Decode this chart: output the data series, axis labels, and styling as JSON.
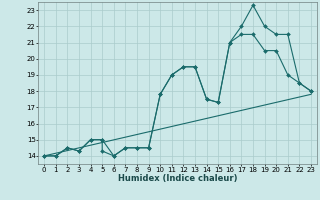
{
  "xlabel": "Humidex (Indice chaleur)",
  "bg_color": "#cce8e8",
  "grid_color": "#aacccc",
  "line_color": "#1a6b6b",
  "xlim": [
    -0.5,
    23.5
  ],
  "ylim": [
    13.5,
    23.5
  ],
  "yticks": [
    14,
    15,
    16,
    17,
    18,
    19,
    20,
    21,
    22,
    23
  ],
  "xticks": [
    0,
    1,
    2,
    3,
    4,
    5,
    6,
    7,
    8,
    9,
    10,
    11,
    12,
    13,
    14,
    15,
    16,
    17,
    18,
    19,
    20,
    21,
    22,
    23
  ],
  "series1_x": [
    0,
    1,
    2,
    3,
    4,
    5,
    5,
    6,
    7,
    8,
    9,
    10,
    11,
    12,
    13,
    14,
    15,
    16,
    17,
    18,
    19,
    20,
    21,
    22,
    23
  ],
  "series1_y": [
    14.0,
    14.0,
    14.5,
    14.3,
    15.0,
    15.0,
    14.3,
    14.0,
    14.5,
    14.5,
    14.5,
    17.8,
    19.0,
    19.5,
    19.5,
    17.5,
    17.3,
    21.0,
    22.0,
    23.3,
    22.0,
    21.5,
    21.5,
    18.5,
    18.0
  ],
  "series2_x": [
    0,
    1,
    2,
    3,
    4,
    5,
    6,
    7,
    8,
    9,
    10,
    11,
    12,
    13,
    14,
    15,
    16,
    17,
    18,
    19,
    20,
    21,
    22,
    23
  ],
  "series2_y": [
    14.0,
    14.0,
    14.5,
    14.3,
    15.0,
    15.0,
    14.0,
    14.5,
    14.5,
    14.5,
    17.8,
    19.0,
    19.5,
    19.5,
    17.5,
    17.3,
    21.0,
    21.5,
    21.5,
    20.5,
    20.5,
    19.0,
    18.5,
    18.0
  ],
  "series3_x": [
    0,
    23
  ],
  "series3_y": [
    14.0,
    17.8
  ]
}
